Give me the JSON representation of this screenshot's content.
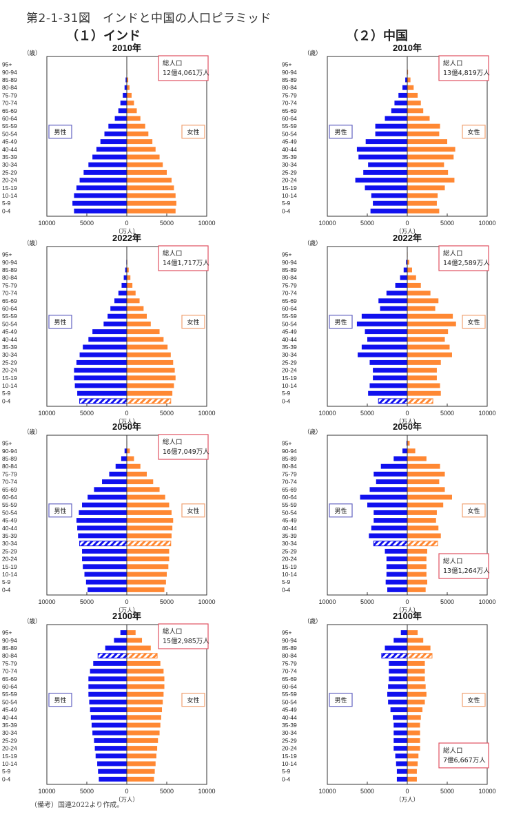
{
  "figure": {
    "title": "第2-1-31図　インドと中国の人口ピラミッド",
    "note": "（備考）国連2022より作成。",
    "colors": {
      "male": "#1010ee",
      "female": "#ff8833",
      "total_box": "#e05060",
      "male_box": "#6060c0",
      "female_box": "#f0a070"
    }
  },
  "sections": [
    {
      "title": "（１）インド"
    },
    {
      "title": "（２）中国"
    }
  ],
  "chart_data": [
    {
      "type": "bar",
      "country": "India",
      "title": "2010年",
      "ylabel": "（歳）",
      "xlabel": "（万人）",
      "categories": [
        "95+",
        "90-94",
        "85-89",
        "80-84",
        "75-79",
        "70-74",
        "65-69",
        "60-64",
        "55-59",
        "50-54",
        "45-49",
        "40-44",
        "35-39",
        "30-34",
        "25-29",
        "20-24",
        "15-19",
        "10-14",
        "5-9",
        "0-4"
      ],
      "series": [
        {
          "name": "男性",
          "values": [
            10,
            40,
            150,
            280,
            500,
            800,
            1060,
            1500,
            2300,
            2800,
            3300,
            3800,
            4300,
            4800,
            5400,
            5900,
            6300,
            6600,
            6800,
            6600
          ]
        },
        {
          "name": "女性",
          "values": [
            10,
            60,
            180,
            340,
            600,
            900,
            1250,
            1700,
            2300,
            2700,
            3200,
            3600,
            4100,
            4500,
            5000,
            5600,
            5900,
            6100,
            6200,
            6100
          ]
        }
      ],
      "highlight_index": null,
      "total_population": "総人口\n12億4,061万人",
      "total_line1": "総人口",
      "total_line2": "12億4,061万人",
      "total_position": "top-right",
      "legend": [
        "男性",
        "女性"
      ],
      "xticks": [
        "10000",
        "5000",
        "0",
        "5000",
        "10000"
      ],
      "xlim": [
        -10000,
        10000
      ]
    },
    {
      "type": "bar",
      "country": "India",
      "title": "2022年",
      "ylabel": "（歳）",
      "xlabel": "（万人）",
      "categories": [
        "95+",
        "90-94",
        "85-89",
        "80-84",
        "75-79",
        "70-74",
        "65-69",
        "60-64",
        "55-59",
        "50-54",
        "45-49",
        "40-44",
        "35-39",
        "30-34",
        "25-29",
        "20-24",
        "15-19",
        "10-14",
        "5-9",
        "0-4"
      ],
      "series": [
        {
          "name": "男性",
          "values": [
            10,
            60,
            200,
            380,
            650,
            1050,
            1550,
            2050,
            2400,
            2900,
            4300,
            4800,
            5500,
            5900,
            6300,
            6600,
            6600,
            6500,
            6200,
            5900
          ]
        },
        {
          "name": "女性",
          "values": [
            10,
            70,
            240,
            450,
            700,
            1100,
            1600,
            2100,
            2500,
            3000,
            4100,
            4600,
            5100,
            5500,
            5800,
            6000,
            6100,
            5900,
            5700,
            5500
          ]
        }
      ],
      "highlight_index": 19,
      "total_line1": "総人口",
      "total_line2": "14億1,717万人",
      "total_position": "top-right",
      "legend": [
        "男性",
        "女性"
      ],
      "xticks": [
        "10000",
        "5000",
        "0",
        "5000",
        "10000"
      ],
      "xlim": [
        -10000,
        10000
      ]
    },
    {
      "type": "bar",
      "country": "India",
      "title": "2050年",
      "ylabel": "（歳）",
      "xlabel": "（万人）",
      "categories": [
        "95+",
        "90-94",
        "85-89",
        "80-84",
        "75-79",
        "70-74",
        "65-69",
        "60-64",
        "55-59",
        "50-54",
        "45-49",
        "40-44",
        "35-39",
        "30-34",
        "25-29",
        "20-24",
        "15-19",
        "10-14",
        "5-9",
        "0-4"
      ],
      "series": [
        {
          "name": "男性",
          "values": [
            40,
            280,
            700,
            1400,
            2200,
            3100,
            4100,
            4900,
            5600,
            6000,
            6300,
            6200,
            6100,
            5900,
            5600,
            5600,
            5500,
            5300,
            5100,
            4900
          ]
        },
        {
          "name": "女性",
          "values": [
            50,
            380,
            900,
            1700,
            2500,
            3300,
            4100,
            4800,
            5300,
            5600,
            5800,
            5700,
            5600,
            5500,
            5300,
            5300,
            5200,
            5000,
            4900,
            4700
          ]
        }
      ],
      "highlight_index": 13,
      "total_line1": "総人口",
      "total_line2": "16億7,049万人",
      "total_position": "top-right",
      "legend": [
        "男性",
        "女性"
      ],
      "xticks": [
        "10000",
        "5000",
        "0",
        "5000",
        "10000"
      ],
      "xlim": [
        -10000,
        10000
      ]
    },
    {
      "type": "bar",
      "country": "India",
      "title": "2100年",
      "ylabel": "（歳）",
      "xlabel": "（万人）",
      "categories": [
        "95+",
        "90-94",
        "85-89",
        "80-84",
        "75-79",
        "70-74",
        "65-69",
        "60-64",
        "55-59",
        "50-54",
        "45-49",
        "40-44",
        "35-39",
        "30-34",
        "25-29",
        "20-24",
        "15-19",
        "10-14",
        "5-9",
        "0-4"
      ],
      "series": [
        {
          "name": "男性",
          "values": [
            800,
            1600,
            2700,
            3600,
            4200,
            4600,
            4800,
            4800,
            4800,
            4700,
            4600,
            4500,
            4400,
            4300,
            4100,
            4000,
            3900,
            3700,
            3600,
            3500
          ]
        },
        {
          "name": "女性",
          "values": [
            1100,
            1900,
            3000,
            3800,
            4200,
            4600,
            4700,
            4700,
            4600,
            4500,
            4400,
            4300,
            4200,
            4100,
            3900,
            3800,
            3700,
            3600,
            3500,
            3400
          ]
        }
      ],
      "highlight_index": 3,
      "total_line1": "総人口",
      "total_line2": "15億2,985万人",
      "total_position": "top-right",
      "legend": [
        "男性",
        "女性"
      ],
      "xticks": [
        "10000",
        "5000",
        "0",
        "5000",
        "10000"
      ],
      "xlim": [
        -10000,
        10000
      ]
    },
    {
      "type": "bar",
      "country": "China",
      "title": "2010年",
      "ylabel": "（歳）",
      "xlabel": "（万人）",
      "categories": [
        "95+",
        "90-94",
        "85-89",
        "80-84",
        "75-79",
        "70-74",
        "65-69",
        "60-64",
        "55-59",
        "50-54",
        "45-49",
        "40-44",
        "35-39",
        "30-34",
        "25-29",
        "20-24",
        "15-19",
        "10-14",
        "5-9",
        "0-4"
      ],
      "series": [
        {
          "name": "男性",
          "values": [
            10,
            50,
            250,
            600,
            1100,
            1600,
            2000,
            2800,
            4000,
            4000,
            5200,
            6300,
            6100,
            4900,
            5500,
            6500,
            5300,
            4500,
            4300,
            4600
          ]
        },
        {
          "name": "女性",
          "values": [
            20,
            100,
            400,
            800,
            1300,
            1700,
            2000,
            2800,
            4100,
            4000,
            5000,
            6000,
            5800,
            4600,
            5100,
            5900,
            4700,
            3800,
            3700,
            4000
          ]
        }
      ],
      "highlight_index": null,
      "total_line1": "総人口",
      "total_line2": "13億4,819万人",
      "total_position": "top-right",
      "legend": [
        "男性",
        "女性"
      ],
      "xticks": [
        "10000",
        "5000",
        "0",
        "5000",
        "10000"
      ],
      "xlim": [
        -10000,
        10000
      ]
    },
    {
      "type": "bar",
      "country": "China",
      "title": "2022年",
      "ylabel": "（歳）",
      "xlabel": "（万人）",
      "categories": [
        "95+",
        "90-94",
        "85-89",
        "80-84",
        "75-79",
        "70-74",
        "65-69",
        "60-64",
        "55-59",
        "50-54",
        "45-49",
        "40-44",
        "35-39",
        "30-34",
        "25-29",
        "20-24",
        "15-19",
        "10-14",
        "5-9",
        "0-4"
      ],
      "series": [
        {
          "name": "男性",
          "values": [
            20,
            150,
            450,
            900,
            1500,
            2600,
            3600,
            3400,
            5700,
            6300,
            5300,
            5000,
            5700,
            6200,
            4700,
            4300,
            4300,
            4700,
            4900,
            3600
          ]
        },
        {
          "name": "女性",
          "values": [
            50,
            250,
            600,
            1100,
            1700,
            2900,
            3900,
            3500,
            5700,
            6100,
            5100,
            4700,
            5300,
            5600,
            4200,
            3700,
            3700,
            4100,
            4200,
            3200
          ]
        }
      ],
      "highlight_index": 19,
      "total_line1": "総人口",
      "total_line2": "14億2,589万人",
      "total_position": "top-right",
      "legend": [
        "男性",
        "女性"
      ],
      "xticks": [
        "10000",
        "5000",
        "0",
        "5000",
        "10000"
      ],
      "xlim": [
        -10000,
        10000
      ]
    },
    {
      "type": "bar",
      "country": "China",
      "title": "2050年",
      "ylabel": "（歳）",
      "xlabel": "（万人）",
      "categories": [
        "95+",
        "90-94",
        "85-89",
        "80-84",
        "75-79",
        "70-74",
        "65-69",
        "60-64",
        "55-59",
        "50-54",
        "45-49",
        "40-44",
        "35-39",
        "30-34",
        "25-29",
        "20-24",
        "15-19",
        "10-14",
        "5-9",
        "0-4"
      ],
      "series": [
        {
          "name": "男性",
          "values": [
            100,
            600,
            1700,
            3300,
            4200,
            3900,
            4700,
            5900,
            5000,
            4200,
            4200,
            4500,
            4800,
            4200,
            2800,
            2600,
            2600,
            2600,
            2700,
            2500
          ]
        },
        {
          "name": "女性",
          "values": [
            300,
            1000,
            2400,
            4100,
            4700,
            4000,
            4700,
            5600,
            4500,
            3700,
            3600,
            3900,
            4200,
            3800,
            2500,
            2400,
            2400,
            2400,
            2500,
            2300
          ]
        }
      ],
      "highlight_index": 13,
      "total_line1": "総人口",
      "total_line2": "13億1,264万人",
      "total_position": "bottom-right",
      "legend": [
        "男性",
        "女性"
      ],
      "xticks": [
        "10000",
        "5000",
        "0",
        "5000",
        "10000"
      ],
      "xlim": [
        -10000,
        10000
      ]
    },
    {
      "type": "bar",
      "country": "China",
      "title": "2100年",
      "ylabel": "（歳）",
      "xlabel": "（万人）",
      "categories": [
        "95+",
        "90-94",
        "85-89",
        "80-84",
        "75-79",
        "70-74",
        "65-69",
        "60-64",
        "55-59",
        "50-54",
        "45-49",
        "40-44",
        "35-39",
        "30-34",
        "25-29",
        "20-24",
        "15-19",
        "10-14",
        "5-9",
        "0-4"
      ],
      "series": [
        {
          "name": "男性",
          "values": [
            800,
            1700,
            2800,
            3200,
            2300,
            2300,
            2300,
            2400,
            2500,
            2400,
            2100,
            1800,
            1700,
            1700,
            1700,
            1700,
            1500,
            1400,
            1300,
            1300
          ]
        },
        {
          "name": "女性",
          "values": [
            1300,
            2000,
            2900,
            3100,
            2200,
            2200,
            2200,
            2300,
            2400,
            2200,
            1900,
            1700,
            1600,
            1600,
            1600,
            1600,
            1400,
            1300,
            1200,
            1200
          ]
        }
      ],
      "highlight_index": 3,
      "total_line1": "総人口",
      "total_line2": "7億6,667万人",
      "total_position": "bottom-right",
      "legend": [
        "男性",
        "女性"
      ],
      "xticks": [
        "10000",
        "5000",
        "0",
        "5000",
        "10000"
      ],
      "xlim": [
        -10000,
        10000
      ]
    }
  ]
}
